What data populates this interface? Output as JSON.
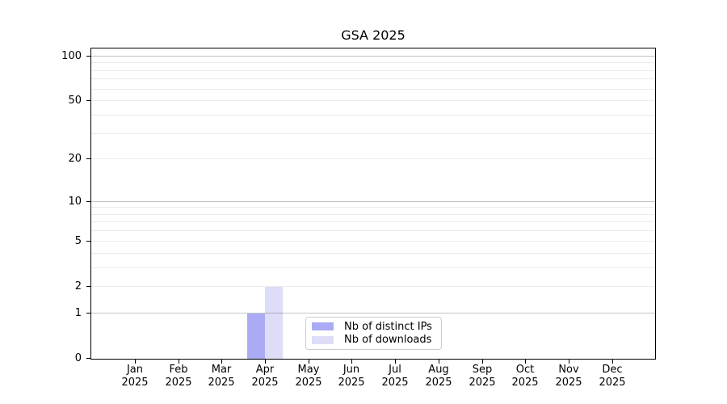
{
  "chart_data": {
    "type": "bar",
    "title": "GSA 2025",
    "categories": [
      "Jan 2025",
      "Feb 2025",
      "Mar 2025",
      "Apr 2025",
      "May 2025",
      "Jun 2025",
      "Jul 2025",
      "Aug 2025",
      "Sep 2025",
      "Oct 2025",
      "Nov 2025",
      "Dec 2025"
    ],
    "series": [
      {
        "name": "Nb of distinct IPs",
        "color": "#ababf5",
        "values": [
          0,
          0,
          0,
          1,
          0,
          0,
          0,
          0,
          0,
          0,
          0,
          0
        ]
      },
      {
        "name": "Nb of downloads",
        "color": "#ddddf8",
        "values": [
          0,
          0,
          0,
          2,
          0,
          0,
          0,
          0,
          0,
          0,
          0,
          0
        ]
      }
    ],
    "xlabel": "",
    "ylabel": "",
    "y_ticks": [
      0,
      1,
      2,
      5,
      10,
      20,
      50,
      100
    ],
    "y_major_gridlines": [
      1,
      10,
      100
    ],
    "y_minor_gridlines": [
      2,
      3,
      4,
      5,
      6,
      7,
      8,
      9,
      20,
      30,
      40,
      50,
      60,
      70,
      80,
      90
    ],
    "scale": "log1p",
    "ylim": [
      0,
      113
    ],
    "grid": true,
    "legend": {
      "position": "lower center"
    }
  }
}
